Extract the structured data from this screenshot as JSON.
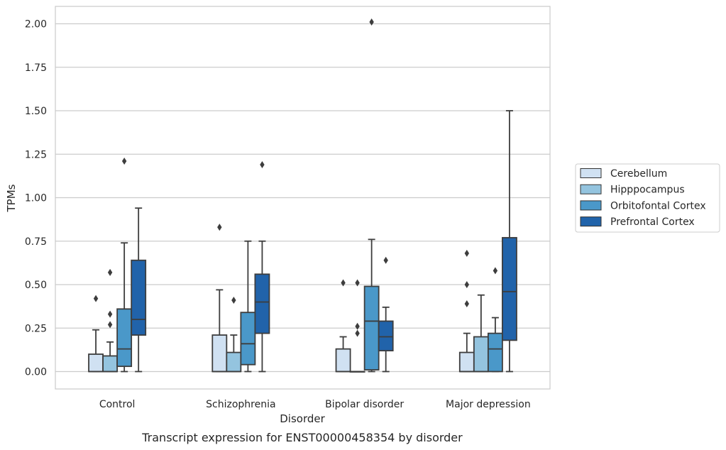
{
  "chart_data": {
    "type": "box",
    "caption": "Transcript expression for ENST00000458354 by disorder",
    "xlabel": "Disorder",
    "ylabel": "TPMs",
    "ylim": [
      -0.1,
      2.1
    ],
    "yticks": [
      "0.00",
      "0.25",
      "0.50",
      "0.75",
      "1.00",
      "1.25",
      "1.50",
      "1.75",
      "2.00"
    ],
    "grid": "horizontal",
    "legend_position": "right",
    "categories": [
      "Control",
      "Schizophrenia",
      "Bipolar disorder",
      "Major depression"
    ],
    "series": [
      {
        "name": "Cerebellum",
        "color": "#d0e1f2",
        "boxes": [
          {
            "whislo": 0,
            "q1": 0,
            "med": 0,
            "q3": 0.1,
            "whishi": 0.24,
            "fliers": [
              0.42
            ]
          },
          {
            "whislo": 0,
            "q1": 0,
            "med": 0,
            "q3": 0.21,
            "whishi": 0.47,
            "fliers": [
              0.83
            ]
          },
          {
            "whislo": 0,
            "q1": 0,
            "med": 0,
            "q3": 0.13,
            "whishi": 0.2,
            "fliers": [
              0.51
            ]
          },
          {
            "whislo": 0,
            "q1": 0,
            "med": 0,
            "q3": 0.11,
            "whishi": 0.22,
            "fliers": [
              0.39,
              0.5,
              0.68
            ]
          }
        ]
      },
      {
        "name": "Hipppocampus",
        "color": "#94c4df",
        "boxes": [
          {
            "whislo": 0,
            "q1": 0,
            "med": 0,
            "q3": 0.09,
            "whishi": 0.17,
            "fliers": [
              0.27,
              0.33,
              0.57
            ]
          },
          {
            "whislo": 0,
            "q1": 0,
            "med": 0,
            "q3": 0.11,
            "whishi": 0.21,
            "fliers": [
              0.41
            ]
          },
          {
            "whislo": 0,
            "q1": 0,
            "med": 0,
            "q3": 0,
            "whishi": 0,
            "fliers": [
              0.22,
              0.26,
              0.51
            ]
          },
          {
            "whislo": 0,
            "q1": 0,
            "med": 0,
            "q3": 0.2,
            "whishi": 0.44,
            "fliers": []
          }
        ]
      },
      {
        "name": "Orbitofontal Cortex",
        "color": "#4a98c9",
        "boxes": [
          {
            "whislo": 0,
            "q1": 0.03,
            "med": 0.13,
            "q3": 0.36,
            "whishi": 0.74,
            "fliers": [
              1.21
            ]
          },
          {
            "whislo": 0,
            "q1": 0.04,
            "med": 0.16,
            "q3": 0.34,
            "whishi": 0.75,
            "fliers": []
          },
          {
            "whislo": 0,
            "q1": 0.01,
            "med": 0.29,
            "q3": 0.49,
            "whishi": 0.76,
            "fliers": [
              2.01
            ]
          },
          {
            "whislo": 0,
            "q1": 0,
            "med": 0.13,
            "q3": 0.22,
            "whishi": 0.31,
            "fliers": [
              0.58
            ]
          }
        ]
      },
      {
        "name": "Prefrontal Cortex",
        "color": "#2163aa",
        "boxes": [
          {
            "whislo": 0,
            "q1": 0.21,
            "med": 0.3,
            "q3": 0.64,
            "whishi": 0.94,
            "fliers": []
          },
          {
            "whislo": 0,
            "q1": 0.22,
            "med": 0.4,
            "q3": 0.56,
            "whishi": 0.75,
            "fliers": [
              1.19
            ]
          },
          {
            "whislo": 0,
            "q1": 0.12,
            "med": 0.2,
            "q3": 0.29,
            "whishi": 0.37,
            "fliers": [
              0.64
            ]
          },
          {
            "whislo": 0,
            "q1": 0.18,
            "med": 0.46,
            "q3": 0.77,
            "whishi": 1.5,
            "fliers": []
          }
        ]
      }
    ]
  }
}
